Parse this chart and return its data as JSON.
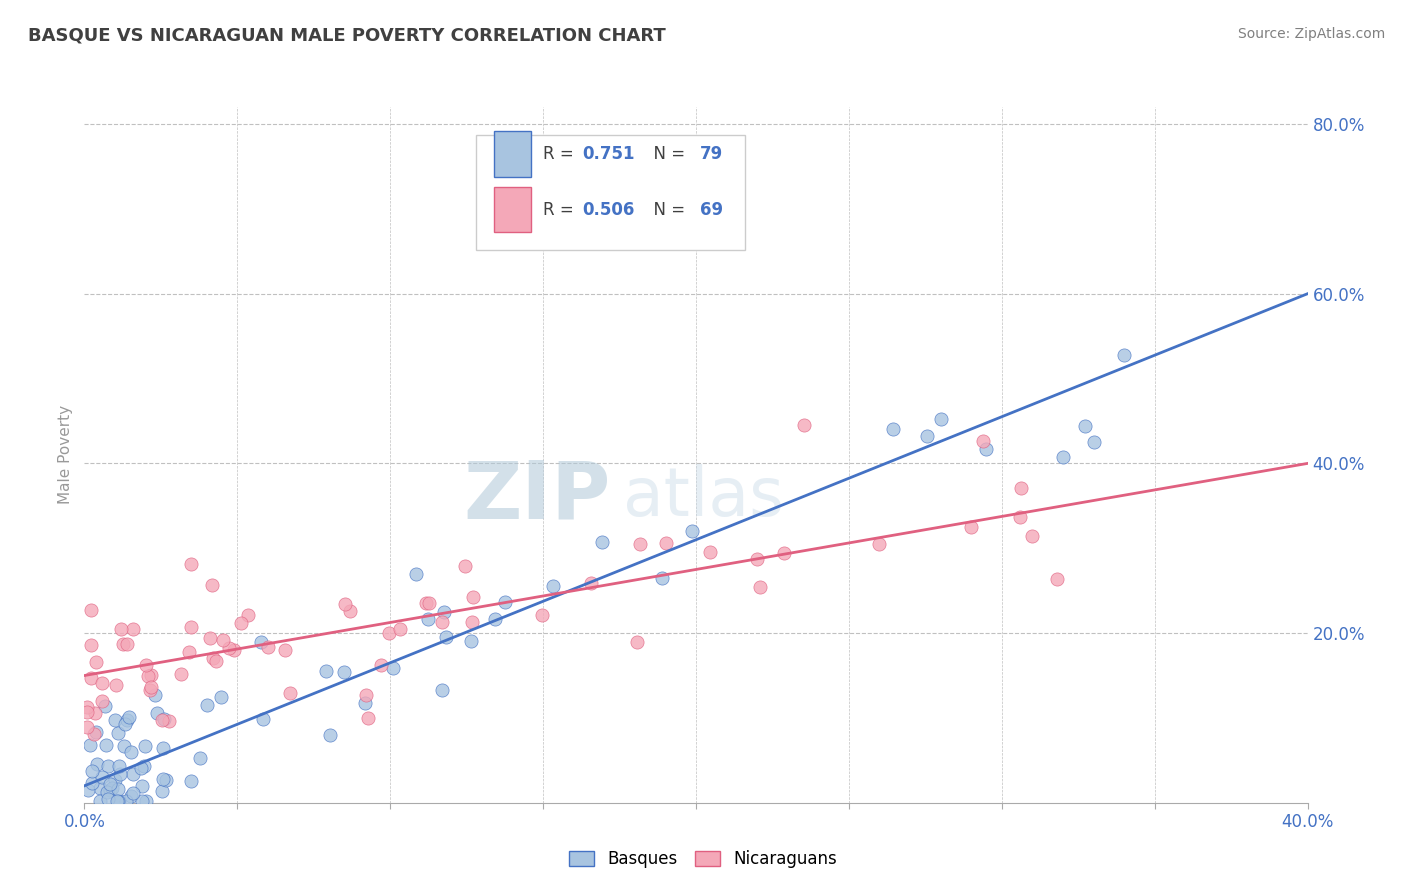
{
  "title": "BASQUE VS NICARAGUAN MALE POVERTY CORRELATION CHART",
  "source_text": "Source: ZipAtlas.com",
  "ylabel": "Male Poverty",
  "xlim": [
    0.0,
    0.4
  ],
  "ylim": [
    0.0,
    0.82
  ],
  "xtick_positions": [
    0.0,
    0.05,
    0.1,
    0.15,
    0.2,
    0.25,
    0.3,
    0.35,
    0.4
  ],
  "xtick_labels": [
    "0.0%",
    "",
    "",
    "",
    "",
    "",
    "",
    "",
    "40.0%"
  ],
  "yticks_right": [
    0.0,
    0.2,
    0.4,
    0.6,
    0.8
  ],
  "ytick_labels_right": [
    "",
    "20.0%",
    "40.0%",
    "60.0%",
    "80.0%"
  ],
  "basque_color": "#a8c4e0",
  "nicaraguan_color": "#f4a8b8",
  "basque_line_color": "#4472c4",
  "nicaraguan_line_color": "#e06080",
  "basque_R": 0.751,
  "basque_N": 79,
  "nicaraguan_R": 0.506,
  "nicaraguan_N": 69,
  "blue_line_y0": 0.02,
  "blue_line_y1": 0.6,
  "pink_line_y0": 0.15,
  "pink_line_y1": 0.4,
  "watermark_zip": "ZIP",
  "watermark_atlas": "atlas",
  "watermark_color": "#c8d8e8",
  "background_color": "#ffffff",
  "grid_color": "#c0c0c0",
  "title_color": "#404040",
  "source_color": "#808080",
  "legend_R_color": "#4472c4",
  "tick_color": "#4472c4"
}
